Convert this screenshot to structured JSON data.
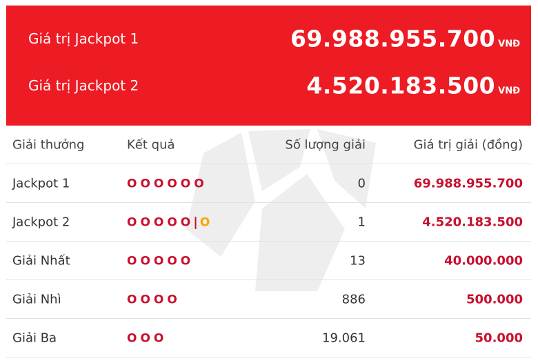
{
  "jackpot": {
    "unit": "VNĐ",
    "items": [
      {
        "label": "Giá trị Jackpot 1",
        "amount": "69.988.955.700"
      },
      {
        "label": "Giá trị Jackpot 2",
        "amount": "4.520.183.500"
      }
    ]
  },
  "table": {
    "headers": {
      "prize": "Giải thưởng",
      "result": "Kết quả",
      "count": "Số lượng giải",
      "value": "Giá trị giải (đồng)"
    },
    "rows": [
      {
        "prize": "Jackpot 1",
        "balls": "OOOOOO",
        "separator": "",
        "special": "",
        "count": "0",
        "value": "69.988.955.700"
      },
      {
        "prize": "Jackpot 2",
        "balls": "OOOOO",
        "separator": "|",
        "special": "O",
        "count": "1",
        "value": "4.520.183.500"
      },
      {
        "prize": "Giải Nhất",
        "balls": "OOOOO",
        "separator": "",
        "special": "",
        "count": "13",
        "value": "40.000.000"
      },
      {
        "prize": "Giải Nhì",
        "balls": "OOOO",
        "separator": "",
        "special": "",
        "count": "886",
        "value": "500.000"
      },
      {
        "prize": "Giải Ba",
        "balls": "OOO",
        "separator": "",
        "special": "",
        "count": "19.061",
        "value": "50.000"
      }
    ]
  },
  "colors": {
    "banner": "#ed1c24",
    "ball": "#c8102e",
    "special_ball": "#f7a600"
  }
}
